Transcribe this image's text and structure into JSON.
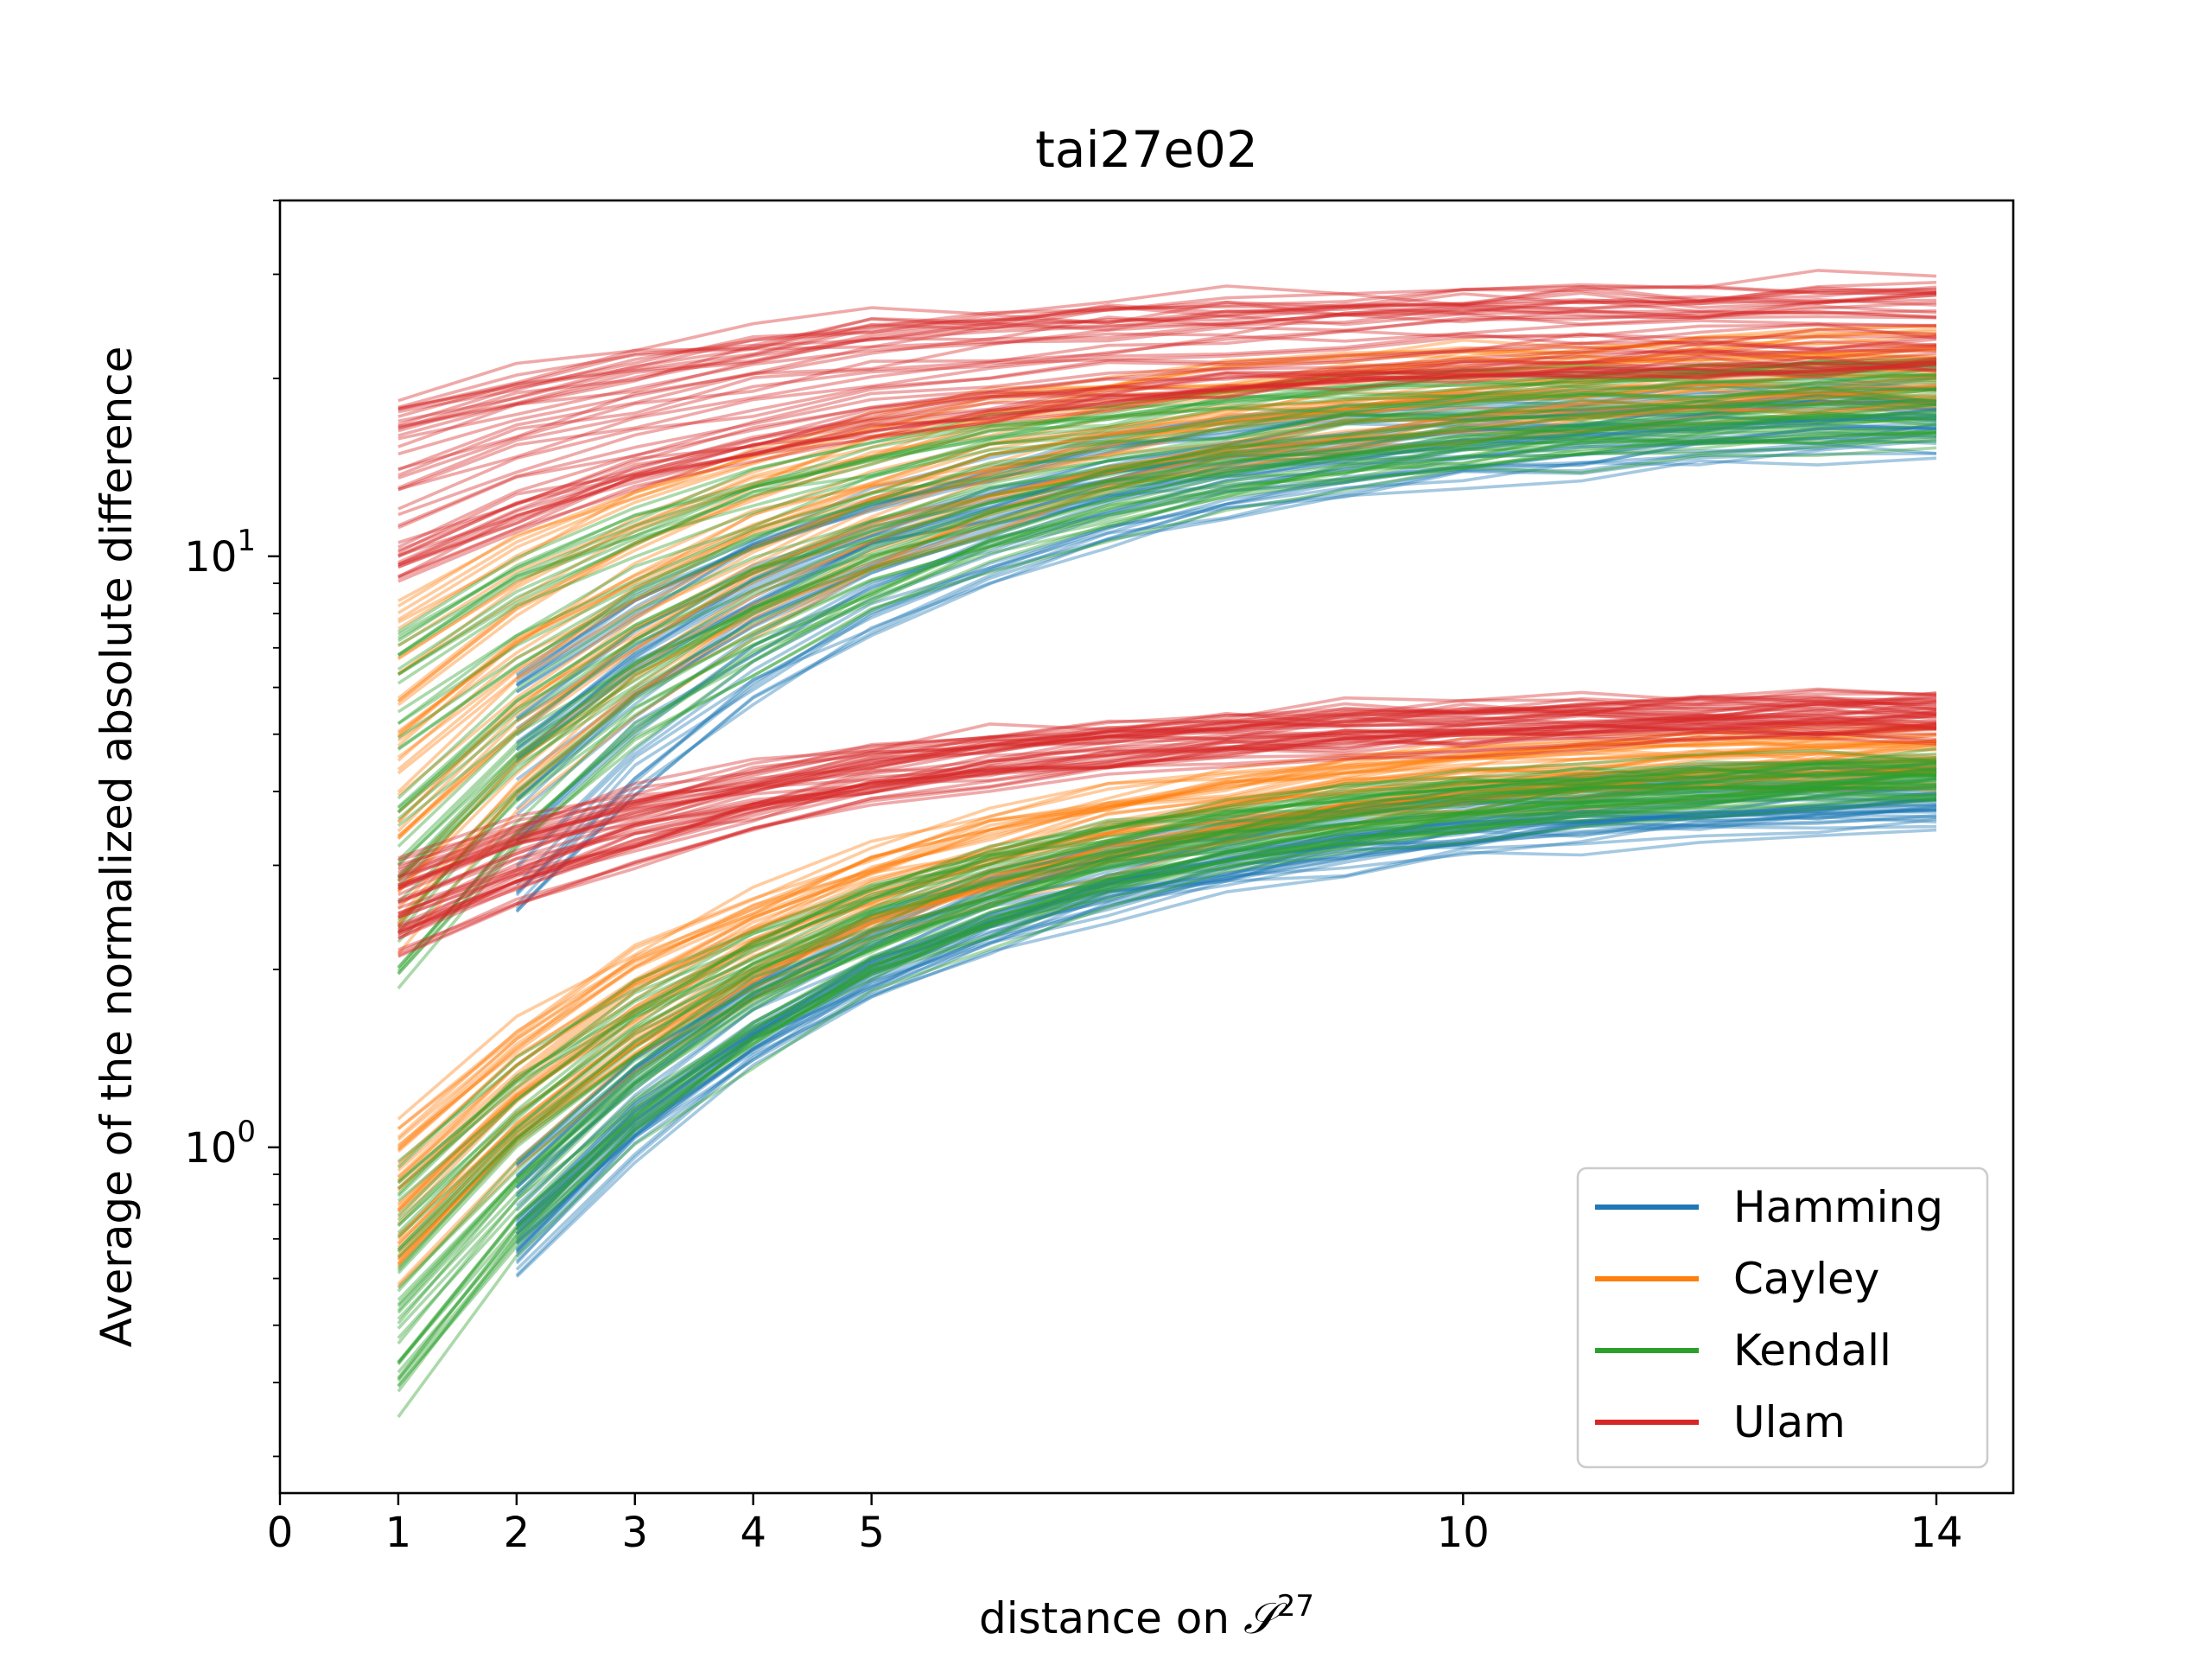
{
  "chart_data": {
    "type": "line",
    "title": "tai27e02",
    "xlabel_text": "distance on ",
    "xlabel_symbol": "𝒮",
    "xlabel_sup": "27",
    "ylabel": "Average of the normalized absolute difference",
    "x_ticks": [
      {
        "value": 0,
        "label": "0"
      },
      {
        "value": 1,
        "label": "1"
      },
      {
        "value": 2,
        "label": "2"
      },
      {
        "value": 3,
        "label": "3"
      },
      {
        "value": 4,
        "label": "4"
      },
      {
        "value": 5,
        "label": "5"
      },
      {
        "value": 10,
        "label": "10"
      },
      {
        "value": 14,
        "label": "14"
      }
    ],
    "y_ticks": [
      {
        "value": 1,
        "base": "10",
        "exp": "0"
      },
      {
        "value": 10,
        "base": "10",
        "exp": "1"
      }
    ],
    "xlim": [
      0,
      14.65
    ],
    "ylim": [
      0.26,
      40
    ],
    "yscale": "log",
    "grid": false,
    "legend_position": "bottom-right",
    "x": [
      1,
      2,
      3,
      4,
      5,
      6,
      7,
      8,
      9,
      10,
      11,
      12,
      13,
      14
    ],
    "series": [
      {
        "name": "Hamming",
        "color": "#1f77b4",
        "bands": [
          {
            "start": [
              0.6,
              0.98
            ],
            "end": [
              3.6,
              4.8
            ],
            "from_x": 2
          },
          {
            "start": [
              2.5,
              6.5
            ],
            "end": [
              15.5,
              21.0
            ],
            "from_x": 2
          }
        ]
      },
      {
        "name": "Cayley",
        "color": "#ff7f0e",
        "bands": [
          {
            "start": [
              0.58,
              1.12
            ],
            "end": [
              4.3,
              5.6
            ],
            "from_x": 1
          },
          {
            "start": [
              2.1,
              8.6
            ],
            "end": [
              18.0,
              25.5
            ],
            "from_x": 1
          }
        ]
      },
      {
        "name": "Kendall",
        "color": "#2ca02c",
        "bands": [
          {
            "start": [
              0.33,
              0.95
            ],
            "end": [
              4.0,
              5.0
            ],
            "from_x": 1
          },
          {
            "start": [
              1.85,
              7.6
            ],
            "end": [
              16.0,
              23.0
            ],
            "from_x": 1
          }
        ]
      },
      {
        "name": "Ulam",
        "color": "#d62728",
        "bands": [
          {
            "start": [
              2.1,
              3.1
            ],
            "end": [
              5.0,
              6.1
            ],
            "from_x": 1
          },
          {
            "start": [
              9.0,
              18.5
            ],
            "end": [
              20.0,
              30.5
            ],
            "from_x": 1
          }
        ]
      }
    ]
  }
}
